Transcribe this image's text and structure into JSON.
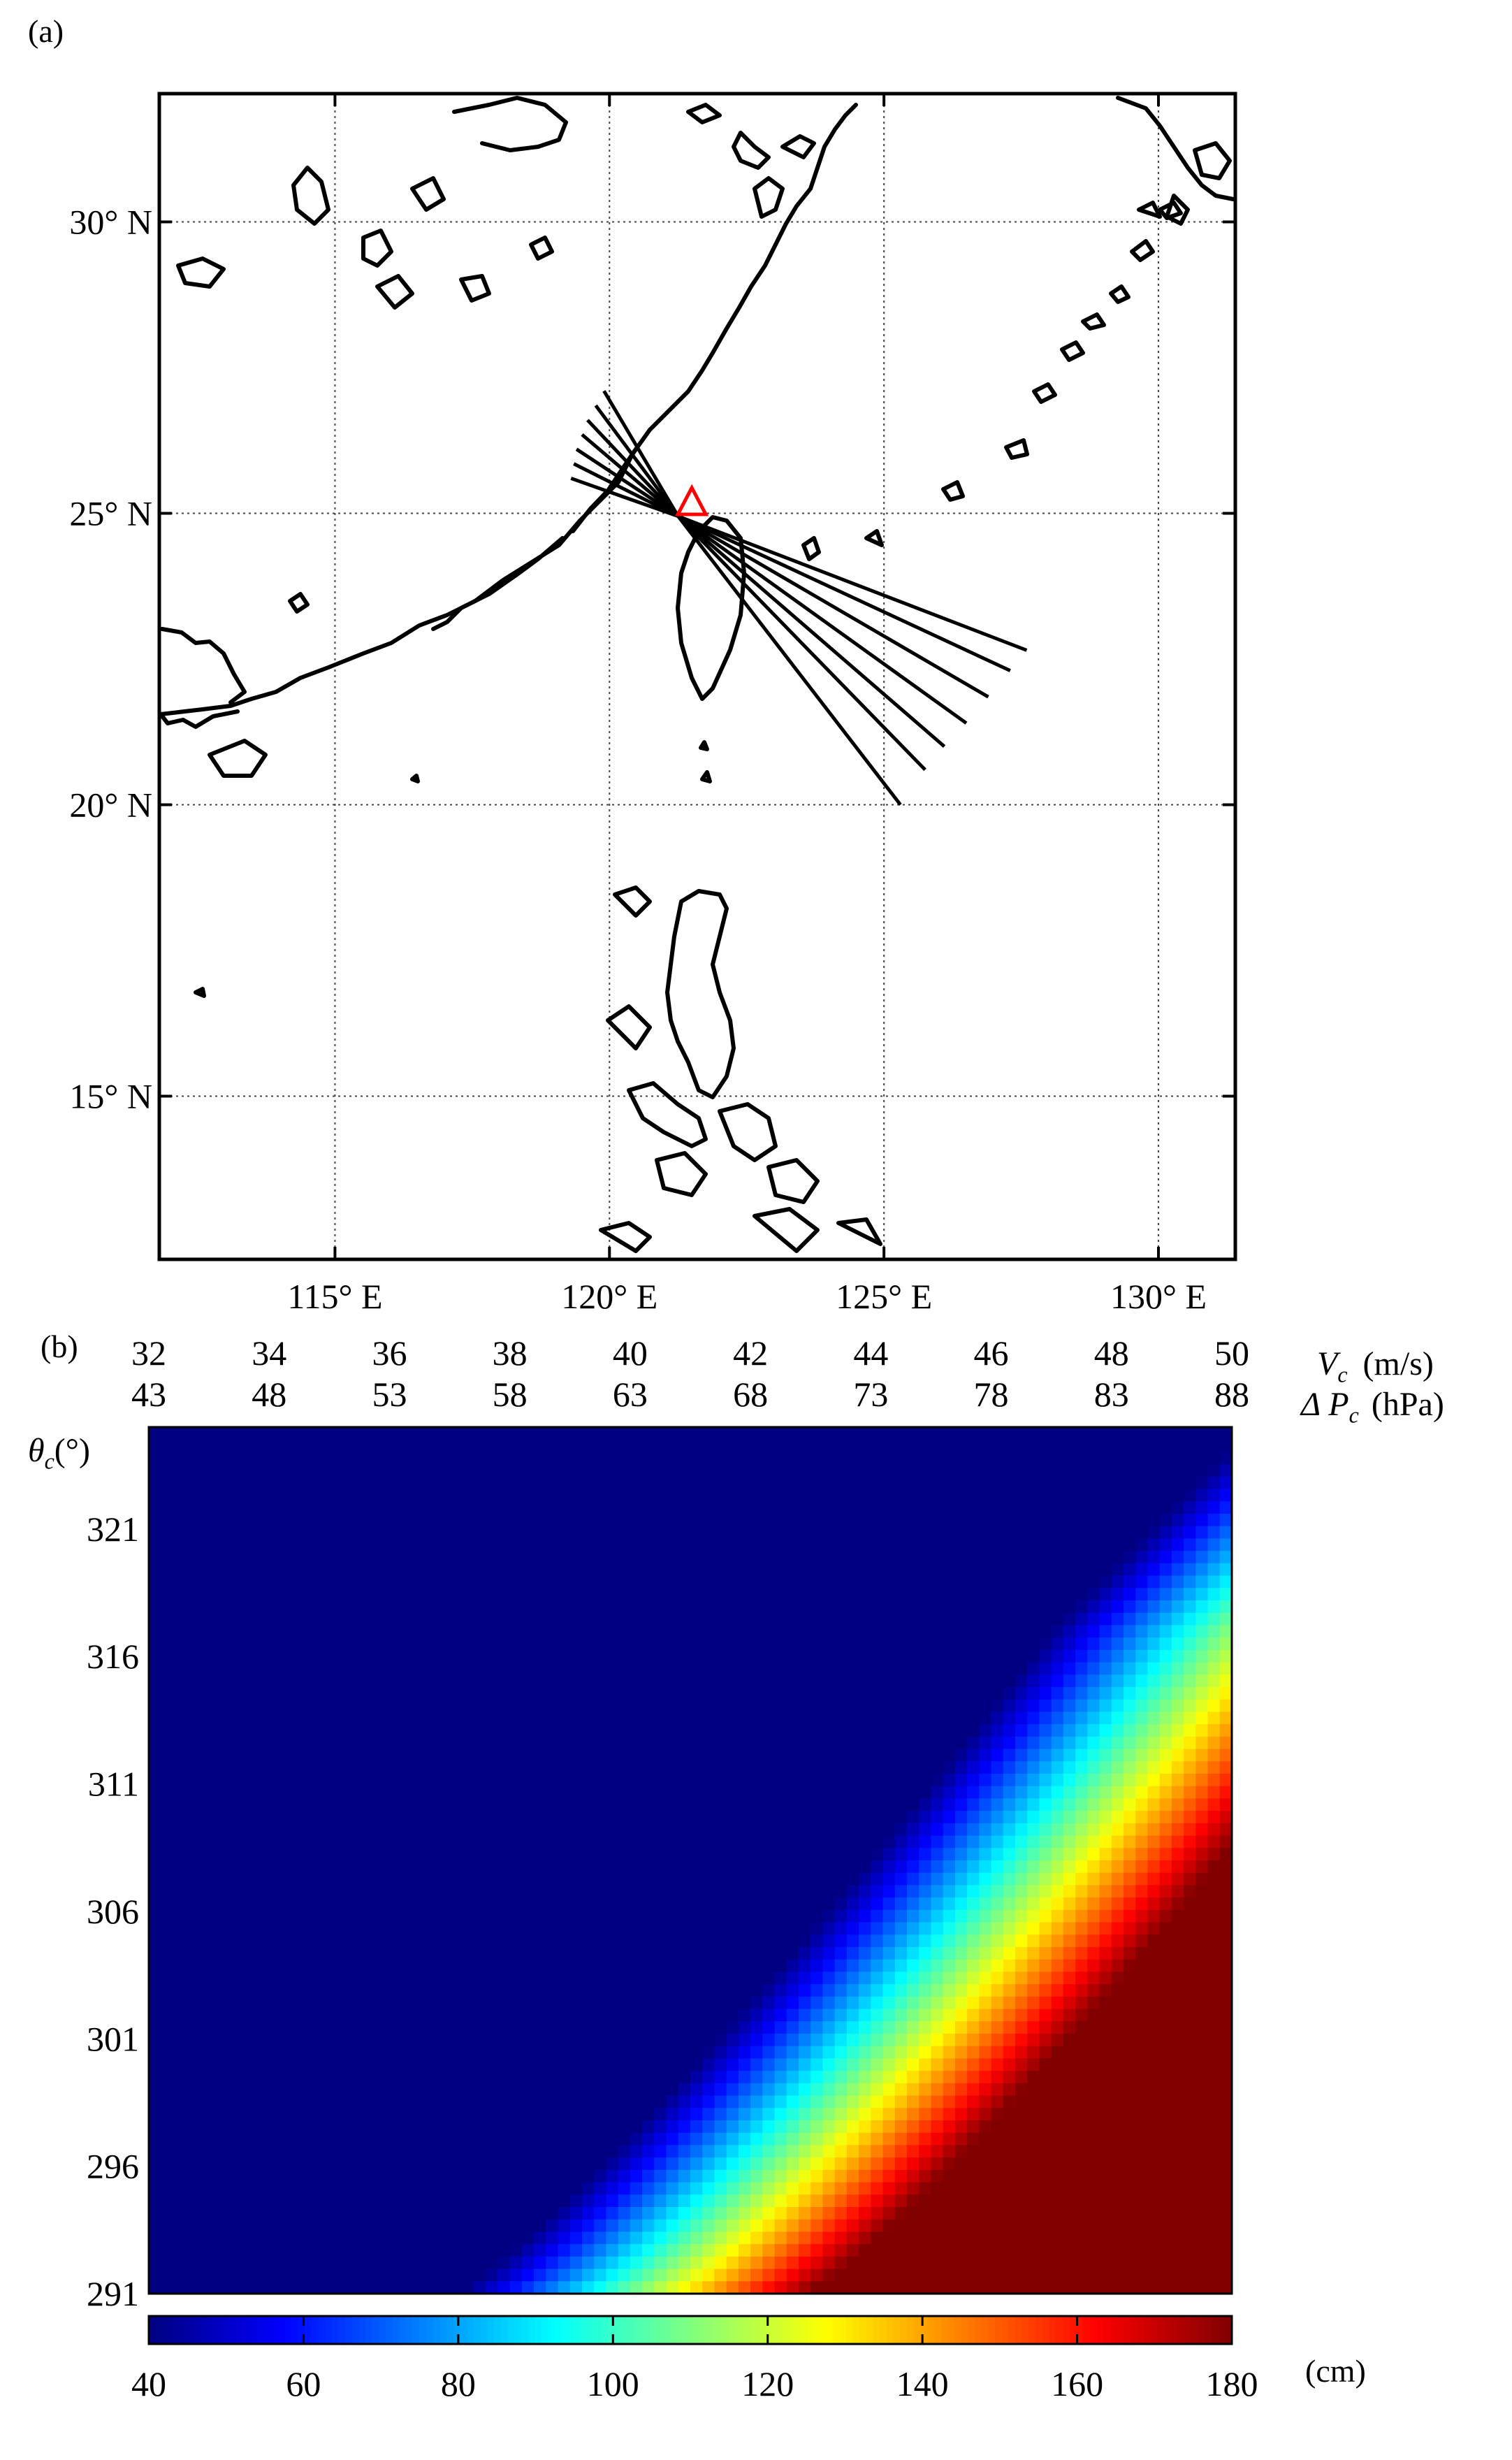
{
  "panel_a": {
    "label": "(a)",
    "chart_data": {
      "type": "map",
      "lon_range": [
        111.8,
        131.4
      ],
      "lat_range": [
        12.2,
        32.2
      ],
      "grid": true,
      "x_ticks": [
        {
          "value": 115,
          "label": "115° E"
        },
        {
          "value": 120,
          "label": "120° E"
        },
        {
          "value": 125,
          "label": "125° E"
        },
        {
          "value": 130,
          "label": "130° E"
        }
      ],
      "y_ticks": [
        {
          "value": 30,
          "label": "30° N"
        },
        {
          "value": 25,
          "label": "25° N"
        },
        {
          "value": 20,
          "label": "20° N"
        },
        {
          "value": 15,
          "label": "15° N"
        }
      ],
      "marker": {
        "type": "triangle",
        "lon": 121.5,
        "lat": 25.15,
        "color": "#ff0000"
      },
      "track_center": {
        "lon": 121.25,
        "lat": 24.95
      },
      "tracks": [
        {
          "end_lon": 119.9,
          "end_lat": 27.1,
          "start_lon": 127.6,
          "start_lat": 22.65
        },
        {
          "end_lon": 119.75,
          "end_lat": 26.85,
          "start_lon": 127.3,
          "start_lat": 22.3
        },
        {
          "end_lon": 119.6,
          "end_lat": 26.6,
          "start_lon": 126.9,
          "start_lat": 21.85
        },
        {
          "end_lon": 119.5,
          "end_lat": 26.35,
          "start_lon": 126.5,
          "start_lat": 21.4
        },
        {
          "end_lon": 119.4,
          "end_lat": 26.1,
          "start_lon": 126.1,
          "start_lat": 21.0
        },
        {
          "end_lon": 119.35,
          "end_lat": 25.85,
          "start_lon": 125.75,
          "start_lat": 20.6
        },
        {
          "end_lon": 119.3,
          "end_lat": 25.6,
          "start_lon": 125.3,
          "start_lat": 20.0
        }
      ]
    }
  },
  "panel_b": {
    "label": "(b)",
    "chart_data": {
      "type": "heatmap",
      "x_top_row1_label": "V",
      "x_top_row1_sub": "c",
      "x_top_row1_unit": "(m/s)",
      "x_top_row2_label": "Δ P",
      "x_top_row2_sub": "c",
      "x_top_row2_unit": "(hPa)",
      "y_label": "θ",
      "y_sub": "c",
      "y_unit": "(°)",
      "x_values_vc": [
        32,
        34,
        36,
        38,
        40,
        42,
        44,
        46,
        48,
        50
      ],
      "x_values_dp": [
        43,
        48,
        53,
        58,
        63,
        68,
        73,
        78,
        83,
        88
      ],
      "x_labels_vc": [
        "32",
        "34",
        "36",
        "38",
        "40",
        "42",
        "44",
        "46",
        "48",
        "50"
      ],
      "x_labels_dp": [
        "43",
        "48",
        "53",
        "58",
        "63",
        "68",
        "73",
        "78",
        "83",
        "88"
      ],
      "y_range": [
        291,
        325
      ],
      "y_ticks": [
        321,
        316,
        311,
        306,
        301,
        296,
        291
      ],
      "y_tick_labels": [
        "321",
        "316",
        "311",
        "306",
        "301",
        "296",
        "291"
      ],
      "colorbar": {
        "range": [
          40,
          180
        ],
        "ticks": [
          40,
          60,
          80,
          100,
          120,
          140,
          160,
          180
        ],
        "tick_labels": [
          "40",
          "60",
          "80",
          "100",
          "120",
          "140",
          "160",
          "180"
        ],
        "unit": "(cm)",
        "colormap": "jet"
      },
      "trend": "surge height increases with V_c (and ΔP_c) and decreases with θ_c; maximum ~180 cm at V_c=50, θ_c=291; band of 100–130 cm runs from V_c≈40,θ_c=291 to V_c≈50,θ_c≈317"
    }
  }
}
